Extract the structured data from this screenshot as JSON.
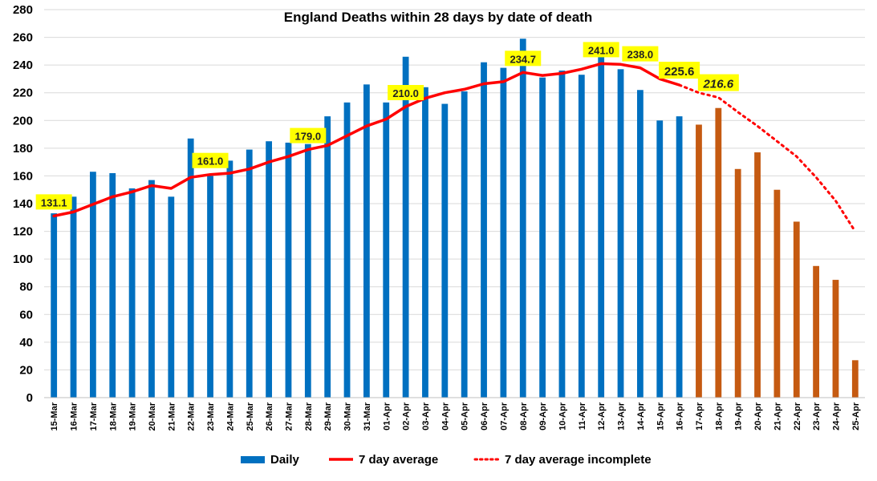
{
  "chart_data": {
    "type": "bar",
    "title": "England Deaths within 28 days by date of death",
    "xlabel": "",
    "ylabel": "",
    "ylim": [
      0,
      280
    ],
    "ystep": 20,
    "grid": true,
    "legend_position": "bottom",
    "categories": [
      "15-Mar",
      "16-Mar",
      "17-Mar",
      "18-Mar",
      "19-Mar",
      "20-Mar",
      "21-Mar",
      "22-Mar",
      "23-Mar",
      "24-Mar",
      "25-Mar",
      "26-Mar",
      "27-Mar",
      "28-Mar",
      "29-Mar",
      "30-Mar",
      "31-Mar",
      "01-Apr",
      "02-Apr",
      "03-Apr",
      "04-Apr",
      "05-Apr",
      "06-Apr",
      "07-Apr",
      "08-Apr",
      "09-Apr",
      "10-Apr",
      "11-Apr",
      "12-Apr",
      "13-Apr",
      "14-Apr",
      "15-Apr",
      "16-Apr",
      "17-Apr",
      "18-Apr",
      "19-Apr",
      "20-Apr",
      "21-Apr",
      "22-Apr",
      "23-Apr",
      "24-Apr",
      "25-Apr"
    ],
    "series": [
      {
        "name": "Daily",
        "kind": "bar",
        "color": "#0070C0",
        "incomplete_color": "#C55A11",
        "incomplete_from_index": 33,
        "values": [
          133,
          145,
          163,
          162,
          151,
          157,
          145,
          187,
          160,
          171,
          179,
          185,
          184,
          183,
          203,
          213,
          226,
          213,
          246,
          224,
          212,
          221,
          242,
          238,
          259,
          231,
          236,
          233,
          246,
          237,
          222,
          200,
          203,
          197,
          209,
          165,
          177,
          150,
          127,
          95,
          85,
          27
        ]
      },
      {
        "name": "7 day average",
        "kind": "line",
        "color": "#FF0000",
        "style": "solid",
        "values": [
          131.1,
          134,
          139.5,
          145,
          148.5,
          153,
          151,
          159,
          161.0,
          162,
          165,
          170,
          174,
          179.0,
          182,
          189,
          196,
          201,
          210.0,
          216,
          220,
          222.5,
          226.5,
          228,
          234.7,
          232.5,
          234,
          237,
          241.0,
          240.5,
          238.0,
          230,
          225.6,
          null,
          null,
          null,
          null,
          null,
          null,
          null,
          null,
          null
        ]
      },
      {
        "name": "7 day average incomplete",
        "kind": "line",
        "color": "#FF0000",
        "style": "dotted",
        "values": [
          null,
          null,
          null,
          null,
          null,
          null,
          null,
          null,
          null,
          null,
          null,
          null,
          null,
          null,
          null,
          null,
          null,
          null,
          null,
          null,
          null,
          null,
          null,
          null,
          null,
          null,
          null,
          null,
          null,
          null,
          null,
          null,
          225.6,
          220,
          216.6,
          206,
          196,
          185,
          174,
          159,
          142,
          120
        ]
      }
    ],
    "annotations": [
      {
        "index": 0,
        "value": 131.1,
        "text": "131.1",
        "style": "normal"
      },
      {
        "index": 8,
        "value": 161.0,
        "text": "161.0",
        "style": "normal"
      },
      {
        "index": 13,
        "value": 179.0,
        "text": "179.0",
        "style": "normal"
      },
      {
        "index": 18,
        "value": 210.0,
        "text": "210.0",
        "style": "normal"
      },
      {
        "index": 24,
        "value": 234.7,
        "text": "234.7",
        "style": "normal"
      },
      {
        "index": 28,
        "value": 241.0,
        "text": "241.0",
        "style": "normal"
      },
      {
        "index": 30,
        "value": 238.0,
        "text": "238.0",
        "style": "normal"
      },
      {
        "index": 32,
        "value": 225.6,
        "text": "225.6",
        "style": "big"
      },
      {
        "index": 34,
        "value": 216.6,
        "text": "216.6",
        "style": "italic"
      }
    ],
    "annotation_bg": "#FFFF00",
    "legend": [
      {
        "label": "Daily",
        "kind": "bar",
        "color": "#0070C0"
      },
      {
        "label": "7 day average",
        "kind": "line",
        "color": "#FF0000"
      },
      {
        "label": "7 day average incomplete",
        "kind": "dotted",
        "color": "#FF0000"
      }
    ]
  }
}
